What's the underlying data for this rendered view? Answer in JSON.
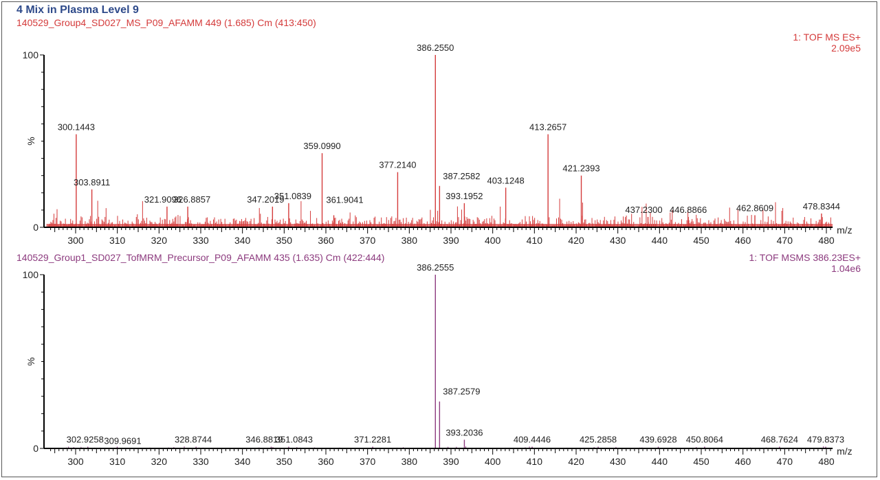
{
  "title": "4 Mix in Plasma Level 9",
  "panels": [
    {
      "header_left": "140529_Group4_SD027_MS_P09_AFAMM 449 (1.685) Cm (413:450)",
      "header_right_1": "1: TOF MS ES+",
      "header_right_2": "2.09e5",
      "color": "#d43a3a"
    },
    {
      "header_left": "140529_Group1_SD027_TofMRM_Precursor_P09_AFAMM 435 (1.635) Cm (422:444)",
      "header_right_1": "1: TOF MSMS 386.23ES+",
      "header_right_2": "1.04e6",
      "color": "#8c3a7e"
    }
  ],
  "chart_data": [
    {
      "type": "bar",
      "title": "140529_Group4_SD027_MS_P09_AFAMM 449 (1.685) Cm (413:450)",
      "subtitle": "1: TOF MS ES+ 2.09e5",
      "xlabel": "m/z",
      "ylabel": "%",
      "xlim": [
        293,
        482
      ],
      "ylim": [
        0,
        100
      ],
      "xticks": [
        300,
        310,
        320,
        330,
        340,
        350,
        360,
        370,
        380,
        390,
        400,
        410,
        420,
        430,
        440,
        450,
        460,
        470,
        480
      ],
      "yticks": [
        0,
        100
      ],
      "grid": false,
      "color": "#d43a3a",
      "labeled_peaks": [
        {
          "mz": 300.1443,
          "intensity": 54
        },
        {
          "mz": 303.8911,
          "intensity": 22
        },
        {
          "mz": 321.9096,
          "intensity": 12
        },
        {
          "mz": 326.8857,
          "intensity": 12
        },
        {
          "mz": 347.2019,
          "intensity": 12
        },
        {
          "mz": 351.0839,
          "intensity": 14
        },
        {
          "mz": 359.099,
          "intensity": 43
        },
        {
          "mz": 361.9041,
          "intensity": 7
        },
        {
          "mz": 377.214,
          "intensity": 32
        },
        {
          "mz": 386.255,
          "intensity": 100
        },
        {
          "mz": 387.2582,
          "intensity": 24
        },
        {
          "mz": 393.1952,
          "intensity": 14
        },
        {
          "mz": 403.1248,
          "intensity": 23
        },
        {
          "mz": 413.2657,
          "intensity": 54
        },
        {
          "mz": 421.2393,
          "intensity": 30
        },
        {
          "mz": 437.23,
          "intensity": 6
        },
        {
          "mz": 446.8866,
          "intensity": 6
        },
        {
          "mz": 462.8609,
          "intensity": 7
        },
        {
          "mz": 478.8344,
          "intensity": 8
        }
      ]
    },
    {
      "type": "bar",
      "title": "140529_Group1_SD027_TofMRM_Precursor_P09_AFAMM 435 (1.635) Cm (422:444)",
      "subtitle": "1: TOF MSMS 386.23ES+ 1.04e6",
      "xlabel": "m/z",
      "ylabel": "%",
      "xlim": [
        293,
        482
      ],
      "ylim": [
        0,
        100
      ],
      "xticks": [
        300,
        310,
        320,
        330,
        340,
        350,
        360,
        370,
        380,
        390,
        400,
        410,
        420,
        430,
        440,
        450,
        460,
        470,
        480
      ],
      "yticks": [
        0,
        100
      ],
      "grid": false,
      "color": "#8c3a7e",
      "labeled_peaks": [
        {
          "mz": 302.9258,
          "intensity": 0.5
        },
        {
          "mz": 309.9691,
          "intensity": 0.5
        },
        {
          "mz": 328.8744,
          "intensity": 0.3
        },
        {
          "mz": 346.8819,
          "intensity": 0.5
        },
        {
          "mz": 351.0843,
          "intensity": 0.8
        },
        {
          "mz": 371.2281,
          "intensity": 0.5
        },
        {
          "mz": 386.2555,
          "intensity": 100
        },
        {
          "mz": 387.2579,
          "intensity": 27
        },
        {
          "mz": 393.2036,
          "intensity": 5
        },
        {
          "mz": 409.4446,
          "intensity": 0.3
        },
        {
          "mz": 425.2858,
          "intensity": 0.3
        },
        {
          "mz": 439.6928,
          "intensity": 0.3
        },
        {
          "mz": 450.8064,
          "intensity": 0.3
        },
        {
          "mz": 468.7624,
          "intensity": 0.3
        },
        {
          "mz": 479.8373,
          "intensity": 0.3
        }
      ]
    }
  ]
}
